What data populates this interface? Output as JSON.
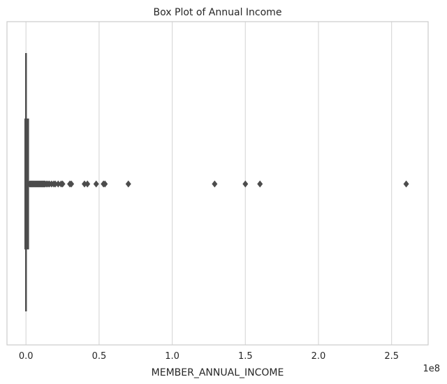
{
  "chart_data": {
    "type": "box",
    "title": "Box Plot of Annual Income",
    "xlabel": "MEMBER_ANNUAL_INCOME",
    "ylabel": "",
    "orientation": "horizontal",
    "x_scale_label": "1e8",
    "x_ticks": [
      0.0,
      0.5,
      1.0,
      1.5,
      2.0,
      2.5
    ],
    "x_tick_labels": [
      "0.0",
      "0.5",
      "1.0",
      "1.5",
      "2.0",
      "2.5"
    ],
    "xlim": [
      -0.13,
      2.75
    ],
    "grid": true,
    "box": {
      "q1": 0.0,
      "median": 0.0,
      "q3": 0.01,
      "whisker_low": 0.0,
      "whisker_high": 0.02
    },
    "outliers": [
      0.025,
      0.03,
      0.035,
      0.04,
      0.045,
      0.05,
      0.055,
      0.06,
      0.065,
      0.07,
      0.075,
      0.08,
      0.085,
      0.09,
      0.095,
      0.1,
      0.105,
      0.11,
      0.115,
      0.12,
      0.125,
      0.13,
      0.14,
      0.15,
      0.16,
      0.175,
      0.19,
      0.2,
      0.22,
      0.24,
      0.25,
      0.3,
      0.31,
      0.4,
      0.42,
      0.48,
      0.53,
      0.54,
      0.7,
      1.29,
      1.5,
      1.6,
      2.6
    ],
    "colors": {
      "box": "#4c4c4c",
      "grid": "#d9d9d9",
      "frame": "#cccccc"
    }
  }
}
